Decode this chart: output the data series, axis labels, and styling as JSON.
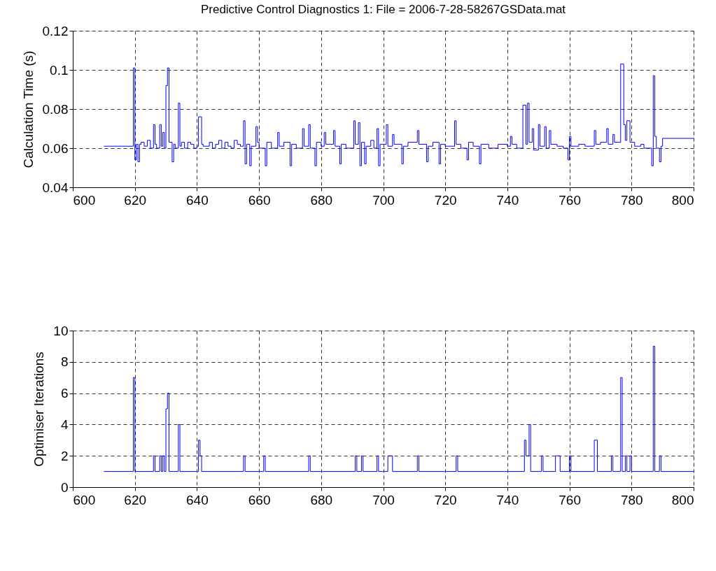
{
  "chart_data": [
    {
      "type": "step",
      "title": "Predictive Control Diagnostics 1: File = 2006-7-28-58267GSData.mat",
      "ylabel": "Calculation Time (s)",
      "xlim": [
        600,
        800
      ],
      "xticks": [
        600,
        620,
        640,
        660,
        680,
        700,
        720,
        740,
        760,
        780,
        800
      ],
      "ylim": [
        0.04,
        0.12
      ],
      "yticks": [
        0.04,
        0.06,
        0.08,
        0.1,
        0.12
      ],
      "grid": true,
      "marker": "none",
      "line_style": "solid",
      "series": [
        {
          "color": "#0000ff",
          "x": [
            610,
            619.5,
            620,
            620.5,
            621,
            621.5,
            622,
            623,
            624,
            625,
            626,
            626.5,
            627,
            628,
            628.5,
            629,
            629.5,
            630,
            630.5,
            631,
            632,
            632.5,
            633,
            634,
            634.5,
            635,
            636,
            637,
            638,
            639,
            640,
            640.5,
            641.5,
            642,
            644,
            645,
            646,
            647,
            648,
            649,
            650,
            651,
            652,
            653,
            654,
            655,
            655.5,
            656,
            657,
            657.5,
            659,
            659.5,
            660,
            662,
            662.5,
            664,
            666,
            666.5,
            668,
            670,
            670.5,
            672,
            674,
            674.5,
            676,
            676.5,
            678,
            678.5,
            680,
            681,
            681.5,
            684,
            684.5,
            686,
            686.5,
            688,
            690.5,
            691,
            692,
            692.5,
            693,
            694,
            694.5,
            696,
            697,
            698,
            698.5,
            699,
            701,
            701.5,
            703,
            703.5,
            706,
            706.5,
            708,
            711,
            711.5,
            714,
            714.5,
            716,
            718,
            718.5,
            720,
            723,
            723.5,
            725,
            727,
            727.5,
            729,
            731,
            731.5,
            734,
            737,
            740,
            741,
            741.5,
            743,
            745,
            746,
            746.5,
            747,
            748,
            748.5,
            750,
            750.5,
            752,
            752.5,
            753.5,
            754,
            756,
            758,
            759.5,
            760,
            760.5,
            763,
            765,
            768,
            768.5,
            770,
            772,
            772.5,
            774,
            774.5,
            776.5,
            777.5,
            778,
            778.5,
            779.5,
            781,
            783,
            784,
            786.5,
            787,
            787.5,
            788,
            789,
            789.5,
            790,
            800
          ],
          "values": [
            0.061,
            0.101,
            0.054,
            0.062,
            0.053,
            0.062,
            0.063,
            0.061,
            0.064,
            0.06,
            0.072,
            0.062,
            0.06,
            0.072,
            0.061,
            0.068,
            0.06,
            0.092,
            0.101,
            0.063,
            0.053,
            0.062,
            0.06,
            0.083,
            0.061,
            0.063,
            0.06,
            0.063,
            0.062,
            0.06,
            0.061,
            0.076,
            0.062,
            0.061,
            0.063,
            0.06,
            0.062,
            0.064,
            0.06,
            0.063,
            0.061,
            0.06,
            0.064,
            0.062,
            0.061,
            0.074,
            0.052,
            0.062,
            0.051,
            0.061,
            0.071,
            0.063,
            0.06,
            0.051,
            0.063,
            0.06,
            0.068,
            0.061,
            0.063,
            0.051,
            0.062,
            0.06,
            0.07,
            0.061,
            0.072,
            0.06,
            0.051,
            0.063,
            0.061,
            0.068,
            0.062,
            0.069,
            0.061,
            0.052,
            0.062,
            0.06,
            0.074,
            0.062,
            0.073,
            0.051,
            0.063,
            0.052,
            0.061,
            0.064,
            0.06,
            0.07,
            0.051,
            0.062,
            0.072,
            0.061,
            0.067,
            0.062,
            0.052,
            0.061,
            0.063,
            0.069,
            0.062,
            0.053,
            0.061,
            0.063,
            0.052,
            0.062,
            0.061,
            0.074,
            0.062,
            0.06,
            0.054,
            0.063,
            0.061,
            0.052,
            0.062,
            0.06,
            0.062,
            0.061,
            0.066,
            0.062,
            0.06,
            0.082,
            0.062,
            0.083,
            0.063,
            0.07,
            0.059,
            0.072,
            0.061,
            0.071,
            0.06,
            0.069,
            0.062,
            0.061,
            0.06,
            0.054,
            0.066,
            0.061,
            0.062,
            0.061,
            0.069,
            0.062,
            0.063,
            0.07,
            0.062,
            0.067,
            0.063,
            0.103,
            0.072,
            0.064,
            0.074,
            0.063,
            0.061,
            0.062,
            0.06,
            0.051,
            0.097,
            0.066,
            0.06,
            0.053,
            0.061,
            0.065,
            0.065
          ]
        }
      ]
    },
    {
      "type": "step",
      "ylabel": "Optimiser Iterations",
      "xlim": [
        600,
        800
      ],
      "xticks": [
        600,
        620,
        640,
        660,
        680,
        700,
        720,
        740,
        760,
        780,
        800
      ],
      "ylim": [
        0,
        10
      ],
      "yticks": [
        0,
        2,
        4,
        6,
        8,
        10
      ],
      "grid": true,
      "marker": "none",
      "line_style": "solid",
      "series": [
        {
          "color": "#0000ff",
          "x": [
            610,
            619.5,
            620,
            626,
            626.5,
            628,
            628.5,
            629,
            629.5,
            630,
            630.5,
            631,
            634,
            634.5,
            640.5,
            641,
            641.5,
            655,
            655.5,
            661.5,
            662,
            676,
            676.5,
            691,
            691.5,
            693,
            693.5,
            698,
            698.5,
            701.5,
            703,
            711,
            711.5,
            723.5,
            724,
            745.5,
            746,
            747,
            747.5,
            751,
            751.5,
            755.5,
            756.5,
            757,
            760,
            760.5,
            768,
            769,
            773.5,
            774,
            776.5,
            777,
            778,
            778.5,
            779.5,
            780,
            787,
            787.5,
            789,
            789.5,
            800
          ],
          "values": [
            1,
            7,
            1,
            2,
            1,
            2,
            1,
            2,
            1,
            5,
            6,
            1,
            4,
            1,
            3,
            2,
            1,
            2,
            1,
            2,
            1,
            2,
            1,
            2,
            1,
            2,
            1,
            2,
            1,
            2,
            1,
            2,
            1,
            2,
            1,
            3,
            2,
            4,
            1,
            2,
            1,
            2,
            2,
            1,
            2,
            1,
            3,
            1,
            2,
            1,
            7,
            1,
            2,
            1,
            2,
            1,
            9,
            1,
            2,
            1,
            1
          ]
        }
      ]
    }
  ]
}
